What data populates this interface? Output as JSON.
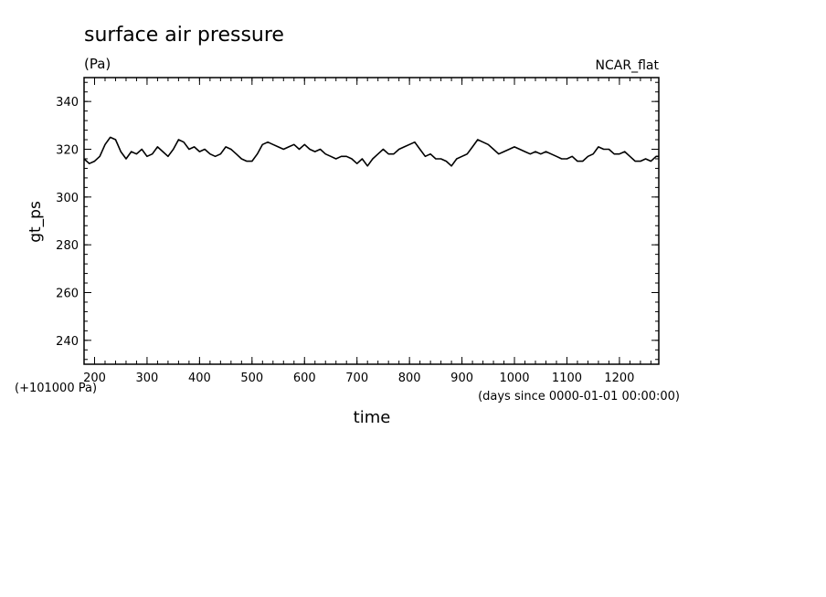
{
  "chart_data": {
    "type": "line",
    "title": "surface air pressure",
    "units": "(Pa)",
    "tag": "NCAR_flat",
    "xlabel": "time",
    "x_units": "(days since 0000-01-01 00:00:00)",
    "ylabel": "gt_ps",
    "y_offset_label": "(+101000 Pa)",
    "xlim": [
      180,
      1275
    ],
    "ylim": [
      230,
      350
    ],
    "x_ticks": [
      200,
      300,
      400,
      500,
      600,
      700,
      800,
      900,
      1000,
      1100,
      1200
    ],
    "y_ticks": [
      240,
      260,
      280,
      300,
      320,
      340
    ],
    "grid": false,
    "series": [
      {
        "color": "#000000",
        "x": [
          180,
          190,
          200,
          210,
          220,
          230,
          240,
          250,
          260,
          270,
          280,
          290,
          300,
          310,
          320,
          330,
          340,
          350,
          360,
          370,
          380,
          390,
          400,
          410,
          420,
          430,
          440,
          450,
          460,
          470,
          480,
          490,
          500,
          510,
          520,
          530,
          540,
          550,
          560,
          570,
          580,
          590,
          600,
          610,
          620,
          630,
          640,
          650,
          660,
          670,
          680,
          690,
          700,
          710,
          720,
          730,
          740,
          750,
          760,
          770,
          780,
          790,
          800,
          810,
          820,
          830,
          840,
          850,
          860,
          870,
          880,
          890,
          900,
          910,
          920,
          930,
          940,
          950,
          960,
          970,
          980,
          990,
          1000,
          1010,
          1020,
          1030,
          1040,
          1050,
          1060,
          1070,
          1080,
          1090,
          1100,
          1110,
          1120,
          1130,
          1140,
          1150,
          1160,
          1170,
          1180,
          1190,
          1200,
          1210,
          1220,
          1230,
          1240,
          1250,
          1260,
          1270,
          1275
        ],
        "y": [
          316,
          314,
          315,
          317,
          322,
          325,
          324,
          319,
          316,
          319,
          318,
          320,
          317,
          318,
          321,
          319,
          317,
          320,
          324,
          323,
          320,
          321,
          319,
          320,
          318,
          317,
          318,
          321,
          320,
          318,
          316,
          315,
          315,
          318,
          322,
          323,
          322,
          321,
          320,
          321,
          322,
          320,
          322,
          320,
          319,
          320,
          318,
          317,
          316,
          317,
          317,
          316,
          314,
          316,
          313,
          316,
          318,
          320,
          318,
          318,
          320,
          321,
          322,
          323,
          320,
          317,
          318,
          316,
          316,
          315,
          313,
          316,
          317,
          318,
          321,
          324,
          323,
          322,
          320,
          318,
          319,
          320,
          321,
          320,
          319,
          318,
          319,
          318,
          319,
          318,
          317,
          316,
          316,
          317,
          315,
          315,
          317,
          318,
          321,
          320,
          320,
          318,
          318,
          319,
          317,
          315,
          315,
          316,
          315,
          317,
          317
        ]
      }
    ]
  }
}
